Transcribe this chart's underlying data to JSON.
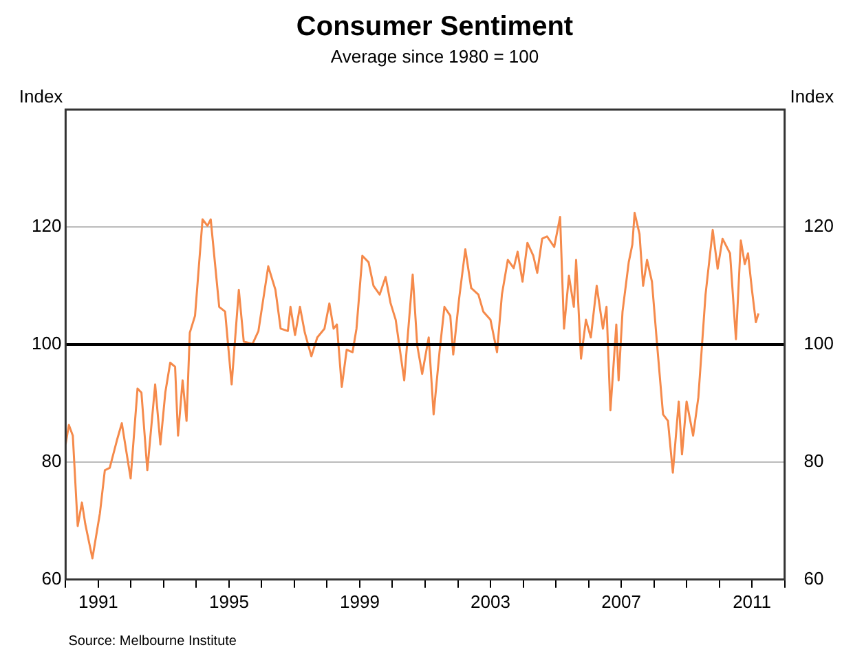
{
  "chart_data": {
    "type": "line",
    "title": "Consumer Sentiment",
    "subtitle": "Average since 1980 = 100",
    "ylabel": "Index",
    "y2label": "Index",
    "annotations": [
      "Source: Melbourne Institute"
    ],
    "series": [
      {
        "color": "#f58a4b",
        "x": [
          1990.0,
          1990.1,
          1990.22,
          1990.37,
          1990.5,
          1990.6,
          1990.82,
          1991.05,
          1991.2,
          1991.35,
          1991.57,
          1991.72,
          1991.99,
          1992.2,
          1992.32,
          1992.5,
          1992.74,
          1992.9,
          1993.05,
          1993.2,
          1993.35,
          1993.44,
          1993.58,
          1993.7,
          1993.8,
          1993.96,
          1994.19,
          1994.34,
          1994.44,
          1994.7,
          1994.88,
          1995.08,
          1995.3,
          1995.45,
          1995.72,
          1995.9,
          1996.2,
          1996.42,
          1996.58,
          1996.8,
          1996.88,
          1997.02,
          1997.17,
          1997.32,
          1997.52,
          1997.7,
          1997.92,
          1998.07,
          1998.2,
          1998.3,
          1998.45,
          1998.6,
          1998.78,
          1998.9,
          1999.08,
          1999.27,
          1999.42,
          1999.61,
          1999.79,
          1999.94,
          2000.1,
          2000.36,
          2000.62,
          2000.76,
          2000.91,
          2001.11,
          2001.26,
          2001.44,
          2001.59,
          2001.77,
          2001.86,
          2002.04,
          2002.23,
          2002.41,
          2002.63,
          2002.78,
          2003.0,
          2003.2,
          2003.35,
          2003.53,
          2003.71,
          2003.83,
          2003.98,
          2004.13,
          2004.31,
          2004.43,
          2004.58,
          2004.73,
          2004.95,
          2005.13,
          2005.25,
          2005.4,
          2005.55,
          2005.62,
          2005.77,
          2005.92,
          2006.07,
          2006.25,
          2006.44,
          2006.55,
          2006.67,
          2006.85,
          2006.92,
          2007.04,
          2007.23,
          2007.34,
          2007.41,
          2007.56,
          2007.67,
          2007.79,
          2007.94,
          2008.09,
          2008.28,
          2008.43,
          2008.58,
          2008.76,
          2008.86,
          2009.0,
          2009.2,
          2009.36,
          2009.58,
          2009.8,
          2009.95,
          2010.1,
          2010.33,
          2010.51,
          2010.66,
          2010.78,
          2010.88,
          2011.0,
          2011.12,
          2011.2
        ],
        "values": [
          83.0,
          86.3,
          84.5,
          69.1,
          73.1,
          69.5,
          63.6,
          71.3,
          78.6,
          79.0,
          83.7,
          86.6,
          77.2,
          92.5,
          91.8,
          78.6,
          93.2,
          83.0,
          91.8,
          96.9,
          96.2,
          84.5,
          93.9,
          87.0,
          102.0,
          104.9,
          121.3,
          120.2,
          121.3,
          106.4,
          105.6,
          93.2,
          109.3,
          100.5,
          100.1,
          102.3,
          113.3,
          109.3,
          102.7,
          102.3,
          106.4,
          101.6,
          106.4,
          102.0,
          98.0,
          101.2,
          102.7,
          107.0,
          102.7,
          103.4,
          92.8,
          99.1,
          98.7,
          102.7,
          115.1,
          114.0,
          110.0,
          108.5,
          111.5,
          107.1,
          104.2,
          93.9,
          111.9,
          99.8,
          95.0,
          101.2,
          88.1,
          98.7,
          106.4,
          104.9,
          98.3,
          107.8,
          116.2,
          109.6,
          108.5,
          105.6,
          104.2,
          98.7,
          108.5,
          114.4,
          113.0,
          115.8,
          110.7,
          117.3,
          115.1,
          112.2,
          118.0,
          118.4,
          116.6,
          121.7,
          102.7,
          111.7,
          106.4,
          114.4,
          97.6,
          104.2,
          101.2,
          110.0,
          102.7,
          106.4,
          88.8,
          103.4,
          93.9,
          105.6,
          114.0,
          117.0,
          122.4,
          118.8,
          110.0,
          114.4,
          110.7,
          100.5,
          88.1,
          87.0,
          78.2,
          90.3,
          81.3,
          90.3,
          84.5,
          91.0,
          108.5,
          119.5,
          112.9,
          118.0,
          115.5,
          100.9,
          117.7,
          113.7,
          115.5,
          109.3,
          103.8,
          105.3
        ]
      }
    ],
    "xlim": [
      1990,
      2012
    ],
    "xticks": [
      {
        "value": 1990,
        "label": null
      },
      1991,
      {
        "value": 1992,
        "label": null
      },
      {
        "value": 1993,
        "label": null
      },
      {
        "value": 1994,
        "label": null
      },
      1995,
      {
        "value": 1996,
        "label": null
      },
      {
        "value": 1997,
        "label": null
      },
      {
        "value": 1998,
        "label": null
      },
      1999,
      {
        "value": 2000,
        "label": null
      },
      {
        "value": 2001,
        "label": null
      },
      {
        "value": 2002,
        "label": null
      },
      2003,
      {
        "value": 2004,
        "label": null
      },
      {
        "value": 2005,
        "label": null
      },
      {
        "value": 2006,
        "label": null
      },
      2007,
      {
        "value": 2008,
        "label": null
      },
      {
        "value": 2009,
        "label": null
      },
      {
        "value": 2010,
        "label": null
      },
      2011,
      {
        "value": 2012,
        "label": null
      }
    ],
    "ylim": [
      60,
      140
    ],
    "yticks": [
      60,
      80,
      100,
      120
    ],
    "y2lim": [
      60,
      140
    ],
    "y2ticks": [
      60,
      80,
      100,
      120
    ],
    "ref_lines": [
      {
        "axis": "y",
        "value": 100,
        "color": "#000000"
      }
    ],
    "grid": "y",
    "legend": false,
    "marker": "none",
    "line_style": "solid"
  }
}
